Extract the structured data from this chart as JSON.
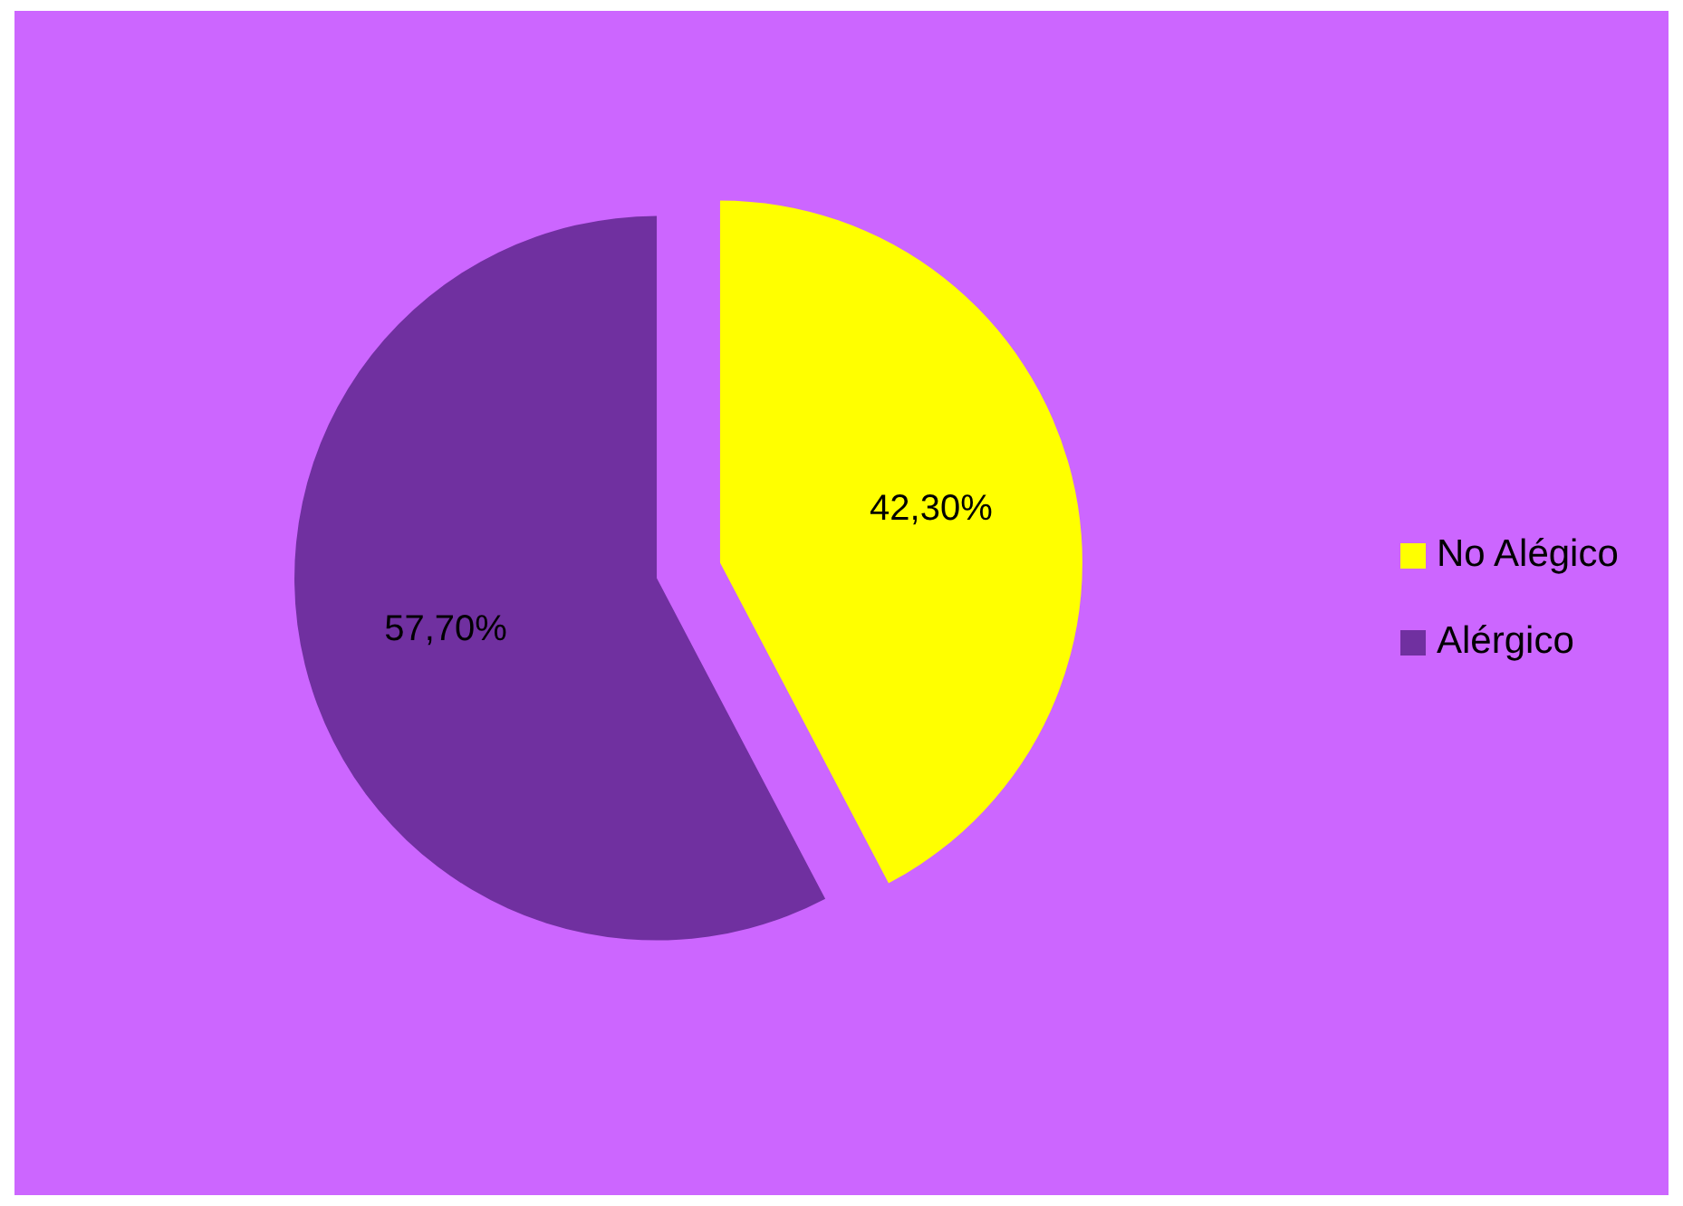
{
  "chart_data": {
    "type": "pie",
    "categories": [
      "No Alégico",
      "Alérgico"
    ],
    "values": [
      42.3,
      57.7
    ],
    "colors": [
      "#ffff00",
      "#7030a0"
    ],
    "value_labels": [
      "42,30%",
      "57,70%"
    ],
    "legend": "right"
  }
}
